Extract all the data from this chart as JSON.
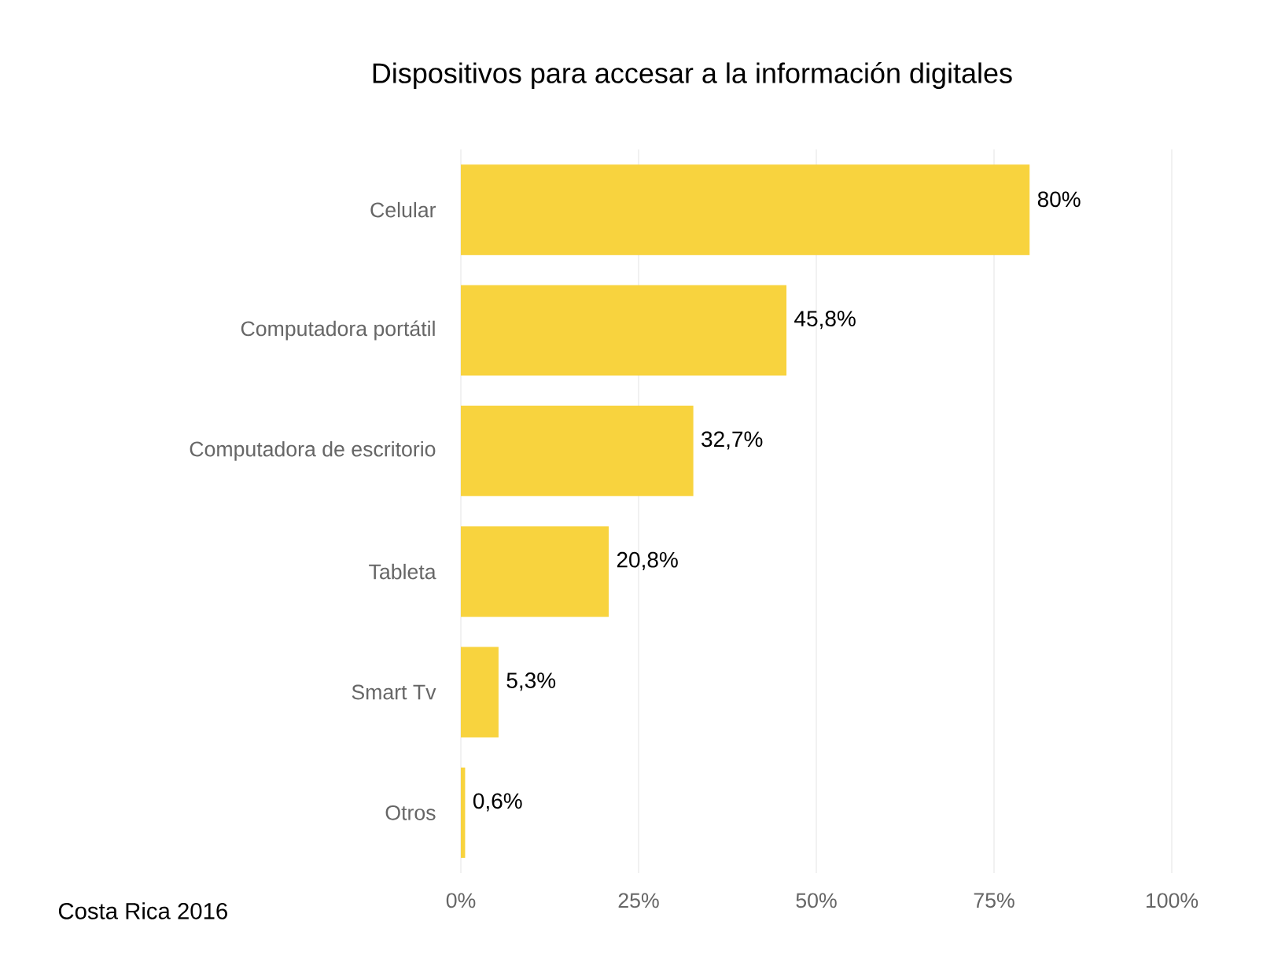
{
  "chart_data": {
    "type": "bar",
    "orientation": "horizontal",
    "title": "Dispositivos para accesar a la información digitales",
    "categories": [
      "Celular",
      "Computadora portátil",
      "Computadora de escritorio",
      "Tableta",
      "Smart Tv",
      "Otros"
    ],
    "values": [
      80,
      45.8,
      32.7,
      20.8,
      5.3,
      0.6
    ],
    "value_labels": [
      "80%",
      "45,8%",
      "32,7%",
      "20,8%",
      "5,3%",
      "0,6%"
    ],
    "color": "#f8d33e",
    "xlim": [
      0,
      100
    ],
    "xticks": [
      {
        "value": 0,
        "label": "0%"
      },
      {
        "value": 25,
        "label": "25%"
      },
      {
        "value": 50,
        "label": "50%"
      },
      {
        "value": 75,
        "label": "75%"
      },
      {
        "value": 100,
        "label": "100%"
      }
    ],
    "grid": "x",
    "annotations": [
      "Costa Rica 2016"
    ]
  }
}
